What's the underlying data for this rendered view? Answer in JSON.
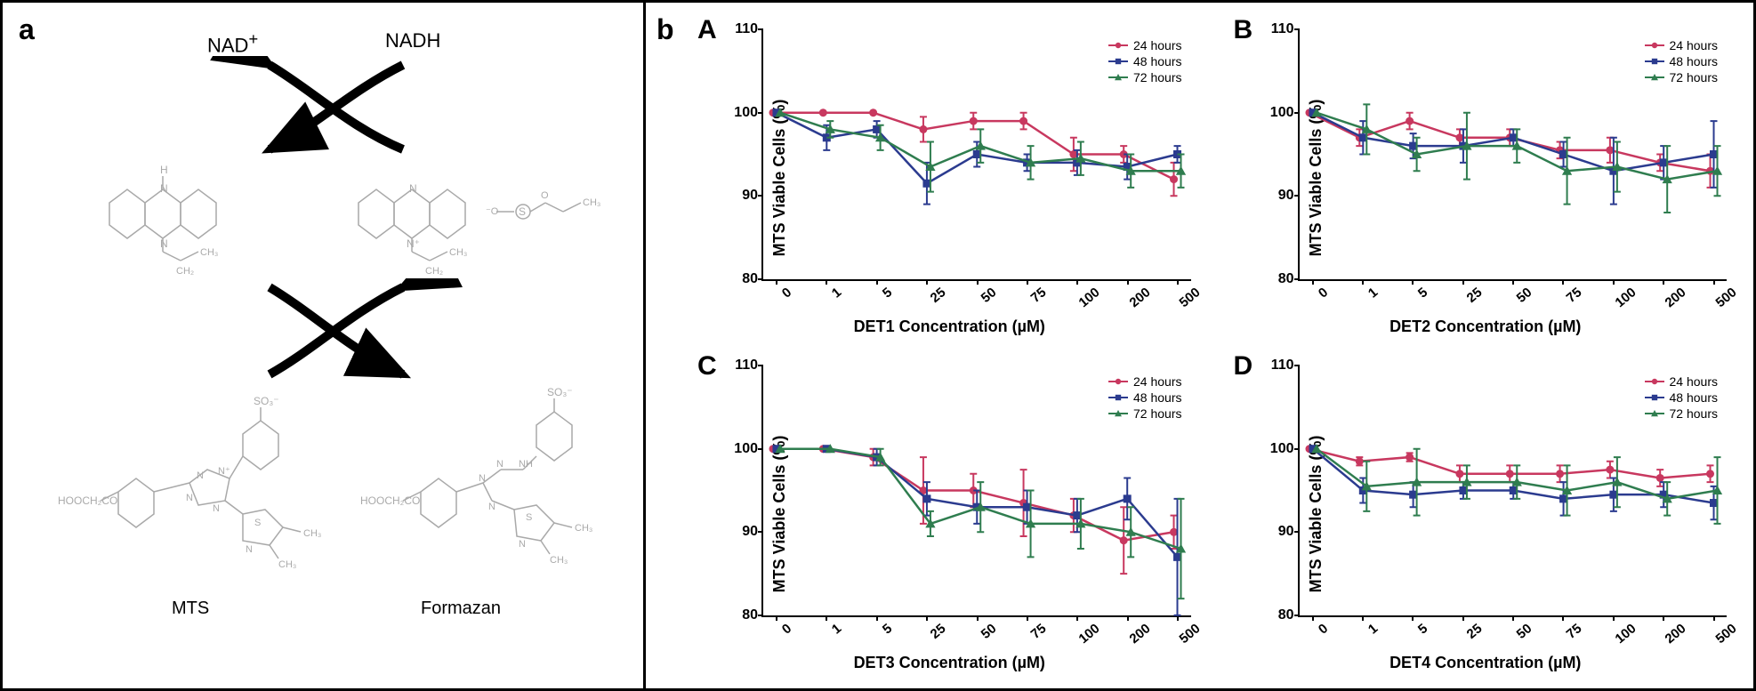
{
  "panel_labels": {
    "a": "a",
    "b": "b"
  },
  "diagram": {
    "nad_plus": "NAD",
    "nad_plus_super": "+",
    "nadh": "NADH",
    "mts": "MTS",
    "formazan": "Formazan",
    "structure_atoms": {
      "h": "H",
      "n": "N",
      "ch3": "CH₃",
      "ch2": "CH₂",
      "ch2_b": "CH₂",
      "o": "O",
      "s": "S",
      "hooch2co": "HOOCH₂CO",
      "so3": "SO₃⁻",
      "nh": "NH"
    }
  },
  "charts": {
    "common": {
      "y_label": "MTS  Viable Cells (%)",
      "y_ticks": [
        80,
        90,
        100,
        110
      ],
      "y_min": 80,
      "y_max": 110,
      "x_ticks": [
        "0",
        "1",
        "5",
        "25",
        "50",
        "75",
        "100",
        "200",
        "500"
      ],
      "legend": [
        {
          "label": "24 hours",
          "color": "#c8385f",
          "marker": "circle"
        },
        {
          "label": "48 hours",
          "color": "#2b3b8f",
          "marker": "square"
        },
        {
          "label": "72 hours",
          "color": "#2f7d4f",
          "marker": "triangle"
        }
      ]
    },
    "A": {
      "label": "A",
      "x_label": "DET1 Concentration (µM)",
      "series": [
        {
          "key": "24 hours",
          "y": [
            100,
            100,
            100,
            98,
            99,
            99,
            95,
            95,
            92
          ],
          "err": [
            0,
            0,
            0,
            1.5,
            1,
            1,
            2,
            1,
            2
          ]
        },
        {
          "key": "48 hours",
          "y": [
            100,
            97,
            98,
            91.5,
            95,
            94,
            94,
            93.5,
            95
          ],
          "err": [
            0,
            1.5,
            1,
            2.5,
            1.5,
            1,
            1.5,
            1.5,
            1
          ]
        },
        {
          "key": "72 hours",
          "y": [
            100,
            98,
            97,
            93.5,
            96,
            94,
            94.5,
            93,
            93
          ],
          "err": [
            0,
            1,
            1.5,
            3,
            2,
            2,
            2,
            2,
            2
          ]
        }
      ]
    },
    "B": {
      "label": "B",
      "x_label": "DET2 Concentration (µM)",
      "series": [
        {
          "key": "24 hours",
          "y": [
            100,
            97,
            99,
            97,
            97,
            95.5,
            95.5,
            94,
            93
          ],
          "err": [
            0,
            1,
            1,
            1,
            1,
            1,
            1.5,
            1,
            2
          ]
        },
        {
          "key": "48 hours",
          "y": [
            100,
            97,
            96,
            96,
            97,
            95,
            93,
            94,
            95
          ],
          "err": [
            0,
            2,
            1.5,
            2,
            1,
            1.5,
            4,
            2,
            4
          ]
        },
        {
          "key": "72 hours",
          "y": [
            100,
            98,
            95,
            96,
            96,
            93,
            93.5,
            92,
            93
          ],
          "err": [
            0,
            3,
            2,
            4,
            2,
            4,
            3,
            4,
            3
          ]
        }
      ]
    },
    "C": {
      "label": "C",
      "x_label": "DET3 Concentration (µM)",
      "series": [
        {
          "key": "24 hours",
          "y": [
            100,
            100,
            99,
            95,
            95,
            93.5,
            92,
            89,
            90
          ],
          "err": [
            0,
            0,
            1,
            4,
            2,
            4,
            2,
            4,
            2
          ]
        },
        {
          "key": "48 hours",
          "y": [
            100,
            100,
            99,
            94,
            93,
            93,
            92,
            94,
            87
          ],
          "err": [
            0,
            0,
            1,
            2,
            2,
            2,
            2,
            2.5,
            7
          ]
        },
        {
          "key": "72 hours",
          "y": [
            100,
            100,
            99,
            91,
            93,
            91,
            91,
            90,
            88
          ],
          "err": [
            0,
            0,
            1,
            1.5,
            3,
            4,
            3,
            3,
            6
          ]
        }
      ]
    },
    "D": {
      "label": "D",
      "x_label": "DET4 Concentration (µM)",
      "series": [
        {
          "key": "24 hours",
          "y": [
            100,
            98.5,
            99,
            97,
            97,
            97,
            97.5,
            96.5,
            97
          ],
          "err": [
            0,
            0.5,
            0.5,
            1,
            1,
            1,
            1,
            1,
            1
          ]
        },
        {
          "key": "48 hours",
          "y": [
            100,
            95,
            94.5,
            95,
            95,
            94,
            94.5,
            94.5,
            93.5
          ],
          "err": [
            0,
            1.5,
            1.5,
            1,
            1,
            2,
            2,
            1.5,
            2
          ]
        },
        {
          "key": "72 hours",
          "y": [
            100,
            95.5,
            96,
            96,
            96,
            95,
            96,
            94,
            95
          ],
          "err": [
            0,
            3,
            4,
            2,
            2,
            3,
            3,
            2,
            4
          ]
        }
      ]
    }
  }
}
